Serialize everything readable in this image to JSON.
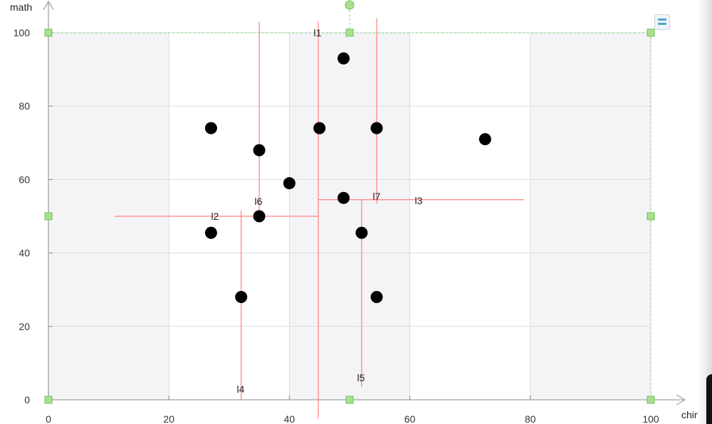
{
  "chart_data": {
    "type": "scatter",
    "title": "",
    "xlabel": "chinese",
    "ylabel": "math",
    "xlim": [
      0,
      100
    ],
    "ylim": [
      0,
      100
    ],
    "xticks": [
      0,
      20,
      40,
      60,
      80,
      100
    ],
    "yticks": [
      0,
      20,
      40,
      60,
      80,
      100
    ],
    "grid": true,
    "legend": "none",
    "marker_color": "#000000",
    "line_color": "#ff6666",
    "points": [
      {
        "x": 27,
        "y": 74
      },
      {
        "x": 35,
        "y": 68
      },
      {
        "x": 45,
        "y": 74
      },
      {
        "x": 49,
        "y": 93
      },
      {
        "x": 54.5,
        "y": 74
      },
      {
        "x": 72.5,
        "y": 71
      },
      {
        "x": 40,
        "y": 59
      },
      {
        "x": 49,
        "y": 55
      },
      {
        "x": 35,
        "y": 50
      },
      {
        "x": 27,
        "y": 45.5
      },
      {
        "x": 52,
        "y": 45.5
      },
      {
        "x": 32,
        "y": 28
      },
      {
        "x": 54.5,
        "y": 28
      }
    ],
    "split_lines": [
      {
        "label": "l1",
        "orientation": "vertical",
        "at": 44.8,
        "from": -5,
        "to": 103
      },
      {
        "label": "l2",
        "orientation": "horizontal",
        "at": 50,
        "from": 11,
        "to": 44.8
      },
      {
        "label": "l3",
        "orientation": "horizontal",
        "at": 54.5,
        "from": 44.8,
        "to": 79
      },
      {
        "label": "l4",
        "orientation": "vertical",
        "at": 32,
        "from": 0,
        "to": 51.5
      },
      {
        "label": "l5",
        "orientation": "vertical",
        "at": 52,
        "from": 3.5,
        "to": 54.5
      },
      {
        "label": "l6",
        "orientation": "vertical",
        "at": 35,
        "from": 50,
        "to": 103
      },
      {
        "label": "l7",
        "orientation": "vertical",
        "at": 54.5,
        "from": 53.5,
        "to": 104
      }
    ],
    "shaded_x_bands": [
      [
        0,
        20
      ],
      [
        40,
        60
      ],
      [
        80,
        100
      ]
    ]
  }
}
